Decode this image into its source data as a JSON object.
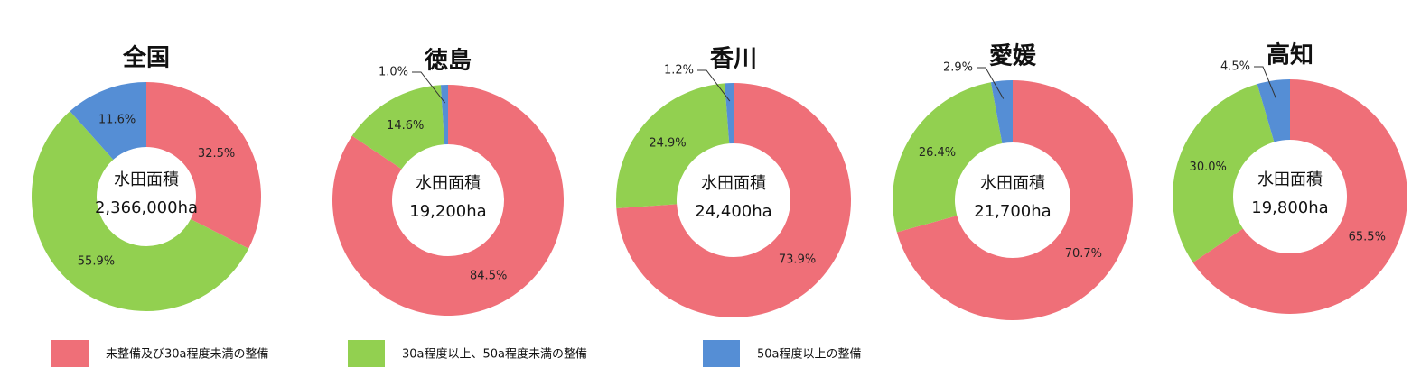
{
  "chart_data": [
    {
      "type": "pie",
      "title": "全国",
      "center_label": "水田面積",
      "center_value": "2,366,000ha",
      "values": [
        32.5,
        55.9,
        11.6
      ],
      "value_labels": [
        "32.5%",
        "55.9%",
        "11.6%"
      ]
    },
    {
      "type": "pie",
      "title": "徳島",
      "center_label": "水田面積",
      "center_value": "19,200ha",
      "values": [
        84.5,
        14.6,
        1.0
      ],
      "value_labels": [
        "84.5%",
        "14.6%",
        "1.0%"
      ]
    },
    {
      "type": "pie",
      "title": "香川",
      "center_label": "水田面積",
      "center_value": "24,400ha",
      "values": [
        73.9,
        24.9,
        1.2
      ],
      "value_labels": [
        "73.9%",
        "24.9%",
        "1.2%"
      ]
    },
    {
      "type": "pie",
      "title": "愛媛",
      "center_label": "水田面積",
      "center_value": "21,700ha",
      "values": [
        70.7,
        26.4,
        2.9
      ],
      "value_labels": [
        "70.7%",
        "26.4%",
        "2.9%"
      ]
    },
    {
      "type": "pie",
      "title": "高知",
      "center_label": "水田面積",
      "center_value": "19,800ha",
      "values": [
        65.5,
        30.0,
        4.5
      ],
      "value_labels": [
        "65.5%",
        "30.0%",
        "4.5%"
      ]
    }
  ],
  "legend": [
    {
      "name": "未整備及び30a程度未満の整備",
      "color": "#ef6f78"
    },
    {
      "name": "30a程度以上、50a程度未満の整備",
      "color": "#92d050"
    },
    {
      "name": "50a程度以上の整備",
      "color": "#558ed5"
    }
  ]
}
